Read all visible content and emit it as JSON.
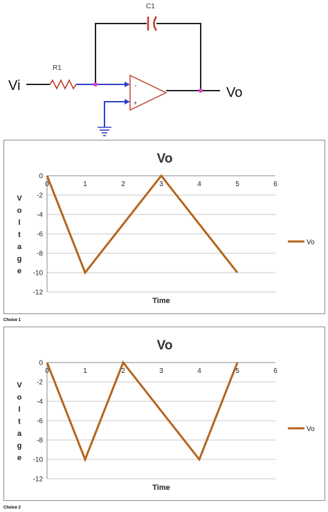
{
  "circuit": {
    "input_label": "Vi",
    "output_label": "Vo",
    "resistor_label": "R1",
    "capacitor_label": "C1",
    "inverting_symbol": "-",
    "noninverting_symbol": "+",
    "colors": {
      "wire": "#222222",
      "input_wire": "#3340cc",
      "component": "#c0392b",
      "node": "#d63fd6",
      "ground": "#3340cc"
    }
  },
  "chart_data": [
    {
      "type": "line",
      "title": "Vo",
      "xlabel": "Time",
      "ylabel": "Voltage",
      "xlim": [
        0,
        6
      ],
      "ylim": [
        -12,
        0
      ],
      "xticks": [
        0,
        1,
        2,
        3,
        4,
        5,
        6
      ],
      "yticks": [
        0,
        -2,
        -4,
        -6,
        -8,
        -10,
        -12
      ],
      "grid": true,
      "legend_position": "right",
      "series": [
        {
          "name": "Vo",
          "color": "#b5651d",
          "x": [
            0,
            1,
            3,
            5
          ],
          "y": [
            0,
            -10,
            0,
            -10
          ]
        }
      ]
    },
    {
      "type": "line",
      "title": "Vo",
      "xlabel": "Time",
      "ylabel": "Voltage",
      "xlim": [
        0,
        6
      ],
      "ylim": [
        -12,
        0
      ],
      "xticks": [
        0,
        1,
        2,
        3,
        4,
        5,
        6
      ],
      "yticks": [
        0,
        -2,
        -4,
        -6,
        -8,
        -10,
        -12
      ],
      "grid": true,
      "legend_position": "right",
      "series": [
        {
          "name": "Vo",
          "color": "#b5651d",
          "x": [
            0,
            1,
            2,
            4,
            5
          ],
          "y": [
            0,
            -10,
            0,
            -10,
            0
          ]
        }
      ]
    }
  ],
  "captions": [
    "Choice 1",
    "Choice 2"
  ]
}
